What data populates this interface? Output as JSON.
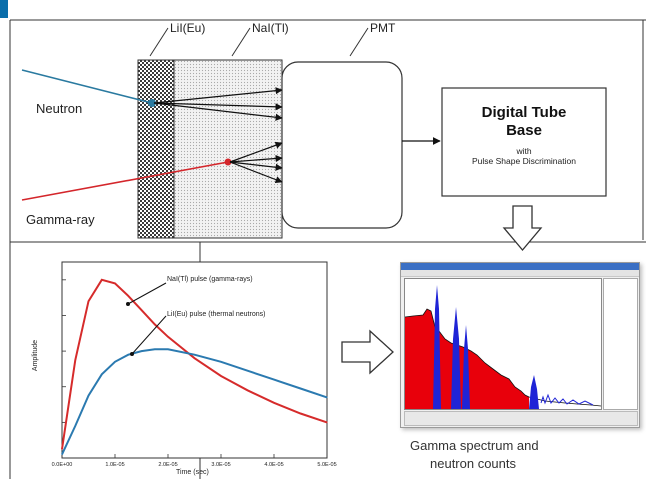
{
  "header_accent_color": "#0a6eab",
  "detector": {
    "crystal1_label": "LiI(Eu)",
    "crystal2_label": "NaI(Tl)",
    "pmt_label": "PMT",
    "neutron_label": "Neutron",
    "gamma_label": "Gamma-ray",
    "neutron_color": "#2a7aa0",
    "gamma_color": "#d4262b"
  },
  "tube_base": {
    "title_line1": "Digital Tube",
    "title_line2": "Base",
    "sub_line1": "with",
    "sub_line2": "Pulse Shape Discrimination"
  },
  "pulse_plot": {
    "nai_label": "NaI(Tl) pulse (gamma-rays)",
    "lii_label": "LiI(Eu) pulse (thermal neutrons)",
    "xlabel": "Time (sec)",
    "ylabel": "Amplitude",
    "xticks": [
      "0.0E+00",
      "1.0E-05",
      "2.0E-05",
      "3.0E-05",
      "4.0E-05",
      "5.0E-05"
    ],
    "nai_color": "#d62b2b",
    "lii_color": "#2b7ab0"
  },
  "chart_data": {
    "type": "line",
    "xlabel": "Time (sec)",
    "ylabel": "Amplitude",
    "xlim": [
      0,
      5e-05
    ],
    "ylim": [
      0,
      1.1
    ],
    "x": [
      0,
      2.5e-06,
      5e-06,
      7.5e-06,
      1e-05,
      1.25e-05,
      1.5e-05,
      1.75e-05,
      2e-05,
      2.5e-05,
      3e-05,
      3.5e-05,
      4e-05,
      4.5e-05,
      5e-05
    ],
    "series": [
      {
        "name": "NaI(Tl) pulse (gamma-rays)",
        "values": [
          0.05,
          0.55,
          0.88,
          1.0,
          0.98,
          0.91,
          0.83,
          0.75,
          0.68,
          0.56,
          0.46,
          0.38,
          0.31,
          0.25,
          0.2
        ]
      },
      {
        "name": "LiI(Eu) pulse (thermal neutrons)",
        "values": [
          0.02,
          0.18,
          0.35,
          0.47,
          0.54,
          0.58,
          0.6,
          0.61,
          0.61,
          0.58,
          0.54,
          0.49,
          0.44,
          0.39,
          0.34
        ]
      }
    ]
  },
  "spectrum": {
    "caption_line1": "Gamma spectrum and",
    "caption_line2": "neutron counts",
    "gamma_fill": "#e8000b",
    "neutron_fill": "#1f24d6"
  }
}
